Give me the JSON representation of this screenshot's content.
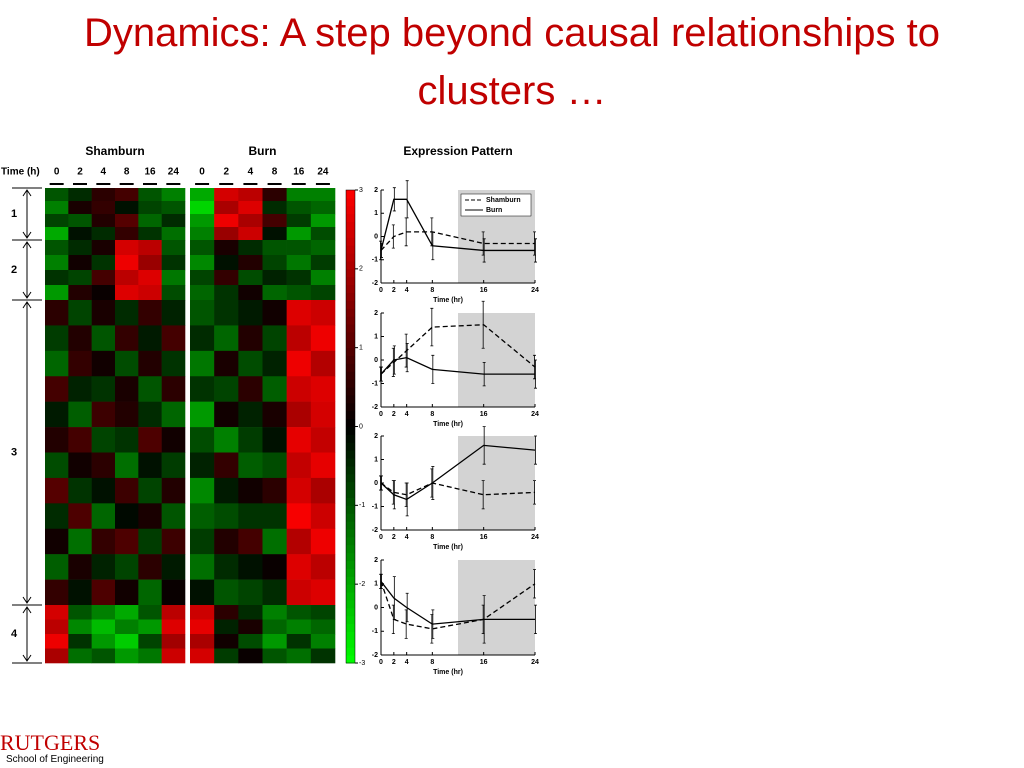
{
  "title": "Dynamics: A step beyond causal relationships to clusters …",
  "logo": {
    "name": "RUTGERS",
    "subtitle": "School of Engineering"
  },
  "chart_data": [
    {
      "type": "heatmap",
      "row_label": "Time (h)",
      "groups": [
        {
          "name": "Shamburn",
          "columns": [
            0,
            2,
            4,
            8,
            16,
            24
          ]
        },
        {
          "name": "Burn",
          "columns": [
            0,
            2,
            4,
            8,
            16,
            24
          ]
        }
      ],
      "colors": [
        "#00ff00",
        "#000000",
        "#ff0000"
      ],
      "colorlim": [
        -3,
        3
      ],
      "colorticks": [
        -3,
        -2,
        -1,
        0,
        1,
        2,
        3
      ],
      "clusters": [
        {
          "label": "1",
          "values": [
            [
              -1,
              -0.5,
              0.5,
              0.8,
              -1,
              -1.5,
              -2,
              2.5,
              2.2,
              0.5,
              -1.5,
              -1.5
            ],
            [
              -1.5,
              0.3,
              0.6,
              -0.2,
              -0.8,
              -1,
              -2.5,
              2,
              2.6,
              -0.5,
              -1,
              -1.2
            ],
            [
              -0.8,
              -1,
              0.4,
              1,
              -1.2,
              -0.5,
              -1.8,
              2.8,
              2,
              0.8,
              -0.7,
              -1.8
            ],
            [
              -2,
              -0.2,
              -0.5,
              0.6,
              -0.6,
              -1.3,
              -1.5,
              1.8,
              2.4,
              -0.2,
              -1.8,
              -0.9
            ]
          ]
        },
        {
          "label": "2",
          "values": [
            [
              -1,
              -0.5,
              0.3,
              2.5,
              2.2,
              -1,
              -1,
              0.3,
              -0.5,
              -1,
              -1,
              -1.2
            ],
            [
              -1.5,
              0.2,
              -0.6,
              2.8,
              1.8,
              -0.6,
              -1.6,
              -0.2,
              0.4,
              -0.8,
              -1.4,
              -0.7
            ],
            [
              -0.6,
              -0.8,
              0.8,
              2.2,
              2.6,
              -1.4,
              -0.8,
              0.6,
              -0.9,
              -0.4,
              -0.6,
              -1.5
            ],
            [
              -1.8,
              0.4,
              0.1,
              2.6,
              2.4,
              -0.9,
              -1.2,
              -0.6,
              0.2,
              -1.2,
              -1,
              -0.8
            ]
          ]
        },
        {
          "label": "3",
          "values": [
            [
              0.5,
              -0.8,
              0.3,
              -0.5,
              0.6,
              -0.4,
              -1,
              -0.6,
              -0.3,
              0.2,
              2.6,
              2.4
            ],
            [
              -0.7,
              0.4,
              -1,
              0.6,
              -0.3,
              0.8,
              -0.5,
              -1.2,
              0.4,
              -0.8,
              2.2,
              2.8
            ],
            [
              -1.2,
              0.6,
              0.2,
              -0.9,
              0.4,
              -0.6,
              -1.4,
              0.3,
              -0.9,
              -0.4,
              2.8,
              2.1
            ],
            [
              0.8,
              -0.4,
              -0.6,
              0.3,
              -1,
              0.5,
              -0.6,
              -0.8,
              0.5,
              -1.1,
              2.4,
              2.6
            ],
            [
              -0.3,
              -1.1,
              0.7,
              0.4,
              -0.5,
              -1.2,
              -1.8,
              0.2,
              -0.4,
              0.3,
              2,
              2.5
            ],
            [
              0.4,
              0.8,
              -0.8,
              -0.6,
              0.9,
              0.2,
              -0.9,
              -1.5,
              -0.7,
              -0.2,
              2.7,
              2.3
            ],
            [
              -0.9,
              0.2,
              0.5,
              -1.3,
              -0.2,
              -0.7,
              -0.4,
              0.6,
              -1.1,
              -0.9,
              2.3,
              2.7
            ],
            [
              1,
              -0.6,
              -0.2,
              0.7,
              -0.8,
              0.4,
              -1.6,
              -0.3,
              0.2,
              0.5,
              2.5,
              2
            ],
            [
              -0.5,
              0.9,
              -1.2,
              -0.1,
              0.3,
              -1,
              -1.1,
              -0.9,
              -0.6,
              -0.6,
              2.9,
              2.4
            ],
            [
              0.2,
              -1.3,
              0.6,
              0.9,
              -0.7,
              0.7,
              -0.7,
              0.4,
              0.8,
              -1.3,
              2.1,
              2.8
            ],
            [
              -1.1,
              0.3,
              -0.4,
              -0.8,
              0.5,
              -0.3,
              -1.3,
              -0.5,
              -0.2,
              0.1,
              2.6,
              2.2
            ],
            [
              0.6,
              -0.2,
              0.9,
              0.2,
              -1.2,
              0.1,
              -0.2,
              -1,
              -0.8,
              -0.5,
              2.4,
              2.6
            ]
          ]
        },
        {
          "label": "4",
          "values": [
            [
              2.5,
              -1,
              -1.5,
              -2,
              -1,
              2.2,
              2.4,
              0.5,
              -0.5,
              -1.5,
              -1,
              -0.8
            ],
            [
              2.2,
              -1.6,
              -2.2,
              -1.5,
              -1.8,
              2.6,
              2.7,
              -0.4,
              0.3,
              -1.2,
              -1.5,
              -1.2
            ],
            [
              2.8,
              -0.6,
              -1.8,
              -2.4,
              -0.8,
              1.9,
              2,
              0.2,
              -0.9,
              -1.8,
              -0.6,
              -1.5
            ],
            [
              2,
              -1.3,
              -1,
              -1.8,
              -1.4,
              2.4,
              2.5,
              -0.7,
              0.1,
              -1,
              -1.3,
              -0.6
            ]
          ]
        }
      ]
    },
    {
      "type": "line",
      "title": "Expression Pattern",
      "xlabel": "Time (hr)",
      "legend": "upper right",
      "x": [
        0,
        2,
        4,
        8,
        16,
        24
      ],
      "xlim": [
        0,
        24
      ],
      "xticks": [
        0,
        2,
        4,
        8,
        16,
        24
      ],
      "ylim": [
        -2,
        2
      ],
      "yticks": [
        -2,
        -1,
        0,
        1,
        2
      ],
      "shade": [
        12,
        24
      ],
      "shade_color": "#d3d3d3",
      "series": [
        {
          "name": "Shamburn",
          "color": "#000000",
          "dash": true,
          "values": [
            -0.6,
            0,
            0.2,
            0.2,
            -0.3,
            -0.3
          ],
          "errors": [
            0.4,
            0.5,
            0.6,
            0.6,
            0.5,
            0.5
          ]
        },
        {
          "name": "Burn",
          "color": "#000000",
          "dash": false,
          "values": [
            -0.6,
            1.6,
            1.6,
            -0.4,
            -0.6,
            -0.6
          ],
          "errors": [
            0.3,
            0.5,
            0.8,
            0.6,
            0.5,
            0.5
          ]
        }
      ]
    },
    {
      "type": "line",
      "xlabel": "Time (hr)",
      "x": [
        0,
        2,
        4,
        8,
        16,
        24
      ],
      "xlim": [
        0,
        24
      ],
      "xticks": [
        0,
        2,
        4,
        8,
        16,
        24
      ],
      "ylim": [
        -2,
        2
      ],
      "yticks": [
        -2,
        -1,
        0,
        1,
        2
      ],
      "shade": [
        12,
        24
      ],
      "shade_color": "#d3d3d3",
      "series": [
        {
          "name": "Shamburn",
          "color": "#000000",
          "dash": true,
          "values": [
            -0.6,
            -0.1,
            0.4,
            1.4,
            1.5,
            -0.3
          ],
          "errors": [
            0.3,
            0.6,
            0.7,
            0.8,
            1,
            0.5
          ]
        },
        {
          "name": "Burn",
          "color": "#000000",
          "dash": false,
          "values": [
            -0.6,
            0,
            0.1,
            -0.4,
            -0.6,
            -0.6
          ],
          "errors": [
            0.3,
            0.6,
            0.6,
            0.6,
            0.5,
            0.6
          ]
        }
      ]
    },
    {
      "type": "line",
      "xlabel": "Time (hr)",
      "x": [
        0,
        2,
        4,
        8,
        16,
        24
      ],
      "xlim": [
        0,
        24
      ],
      "xticks": [
        0,
        2,
        4,
        8,
        16,
        24
      ],
      "ylim": [
        -2,
        2
      ],
      "yticks": [
        -2,
        -1,
        0,
        1,
        2
      ],
      "shade": [
        12,
        24
      ],
      "shade_color": "#d3d3d3",
      "series": [
        {
          "name": "Shamburn",
          "color": "#000000",
          "dash": true,
          "values": [
            0,
            -0.4,
            -0.5,
            0,
            -0.5,
            -0.4
          ],
          "errors": [
            0.3,
            0.5,
            0.5,
            0.6,
            0.6,
            0.5
          ]
        },
        {
          "name": "Burn",
          "color": "#000000",
          "dash": false,
          "values": [
            0,
            -0.5,
            -0.7,
            0,
            1.6,
            1.4
          ],
          "errors": [
            0.3,
            0.6,
            0.7,
            0.7,
            0.8,
            0.6
          ]
        }
      ]
    },
    {
      "type": "line",
      "xlabel": "Time (hr)",
      "x": [
        0,
        2,
        4,
        8,
        16,
        24
      ],
      "xlim": [
        0,
        24
      ],
      "xticks": [
        0,
        2,
        4,
        8,
        16,
        24
      ],
      "ylim": [
        -2,
        2
      ],
      "yticks": [
        -2,
        -1,
        0,
        1,
        2
      ],
      "shade": [
        12,
        24
      ],
      "shade_color": "#d3d3d3",
      "series": [
        {
          "name": "Shamburn",
          "color": "#000000",
          "dash": true,
          "values": [
            1.1,
            -0.5,
            -0.7,
            -0.9,
            -0.5,
            1
          ],
          "errors": [
            0.3,
            0.6,
            0.6,
            0.6,
            0.6,
            0.6
          ]
        },
        {
          "name": "Burn",
          "color": "#000000",
          "dash": false,
          "values": [
            1.1,
            0.4,
            0,
            -0.7,
            -0.5,
            -0.5
          ],
          "errors": [
            0.3,
            0.9,
            0.6,
            0.6,
            1,
            0.6
          ]
        }
      ]
    }
  ]
}
